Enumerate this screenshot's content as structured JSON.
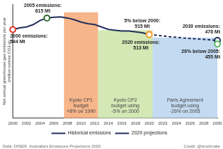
{
  "chart_data": {
    "type": "line",
    "x": [
      2000,
      2001,
      2002,
      2003,
      2004,
      2005,
      2006,
      2007,
      2008,
      2009,
      2010,
      2011,
      2012,
      2013,
      2014,
      2015,
      2016,
      2017,
      2018,
      2019,
      2020,
      2021,
      2022,
      2023,
      2024,
      2025,
      2026,
      2027,
      2028,
      2029,
      2030
    ],
    "series": [
      {
        "name": "Historical emissions",
        "color": "#1f2d5a",
        "line_style": "solid",
        "values": [
          544,
          555,
          560,
          575,
          600,
          615,
          620,
          622,
          615,
          605,
          590,
          580,
          575,
          560,
          545,
          540,
          535,
          535,
          530,
          525,
          513,
          null,
          null,
          null,
          null,
          null,
          null,
          null,
          null,
          null,
          null
        ]
      },
      {
        "name": "2020 projections",
        "color": "#1f2d5a",
        "line_style": "dashed",
        "values": [
          null,
          null,
          null,
          null,
          null,
          null,
          null,
          null,
          null,
          null,
          null,
          null,
          null,
          null,
          null,
          null,
          null,
          null,
          null,
          null,
          513,
          510,
          505,
          500,
          497,
          493,
          490,
          487,
          484,
          481,
          478
        ]
      }
    ],
    "xlim": [
      2000,
      2030
    ],
    "xticks": [
      2000,
      2002,
      2004,
      2006,
      2008,
      2010,
      2012,
      2014,
      2016,
      2018,
      2020,
      2022,
      2024,
      2026,
      2028,
      2030
    ],
    "ylim": [
      0,
      700
    ],
    "y_label": [
      "Net annual greenhouse gas emissions per year",
      "(million tonnes CO2-e)"
    ],
    "tick_labels": "x",
    "grid": false,
    "legend": "bottom",
    "regions": [
      {
        "label": [
          "Kyoto CP1",
          "budget",
          "+8% on 1990"
        ],
        "start": 2007.5,
        "end": 2012.5,
        "value": 650,
        "color": "#f7b58a"
      },
      {
        "label": [
          "Kyoto CP2",
          "budget using",
          "-5% on 2000"
        ],
        "start": 2012.5,
        "end": 2020.5,
        "value": 540,
        "color": "#d3e8b5"
      },
      {
        "label": [
          "Paris Agreement",
          "budget using",
          "-26% on 2005"
        ],
        "start": 2020.5,
        "end": 2030,
        "value": 495,
        "color": "#c3daf0"
      }
    ],
    "annotations": [
      {
        "x": 2000,
        "value": 544,
        "text": [
          "2000 emissions:",
          "544 Mt"
        ],
        "color": "#e0301e"
      },
      {
        "x": 2005,
        "value": 615,
        "text": [
          "2005 emissions:",
          "615 Mt"
        ],
        "color": "#2e6b2e"
      },
      {
        "x": 2020,
        "value": 515,
        "text": [
          "5% below 2000:",
          "515 Mt"
        ],
        "color": "#f0a030"
      },
      {
        "x": 2020,
        "value": 513,
        "text": [
          "2020 emissions:",
          "513 Mt"
        ],
        "color": "#f0a030"
      },
      {
        "x": 2030,
        "value": 478,
        "text": [
          "2030 emissions:",
          "478 Mt"
        ],
        "color": "#1f2d5a"
      },
      {
        "x": 2030,
        "value": 455,
        "text": [
          "26% below 2005:",
          "455 Mt"
        ],
        "color": "#5cb85c"
      }
    ],
    "footer": [
      "Data: DISER, Australia's Emissions Projections 2020",
      "Credit: @timclimate"
    ]
  }
}
